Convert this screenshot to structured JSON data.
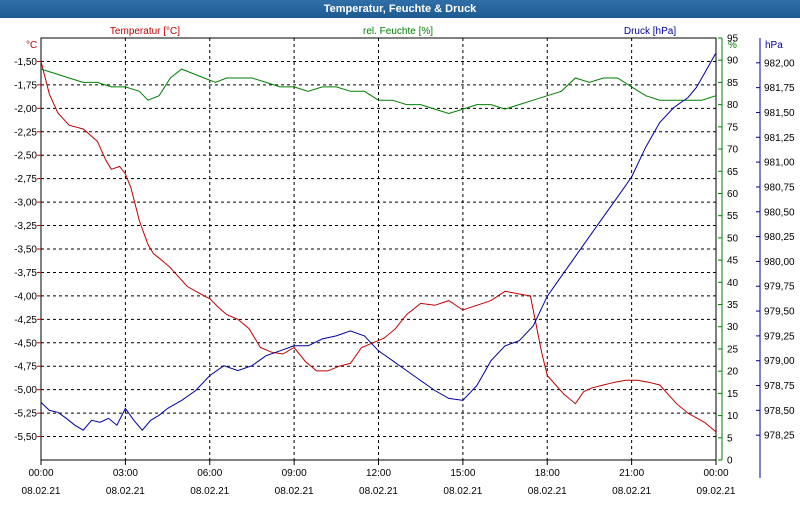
{
  "window": {
    "title": "Temperatur, Feuchte & Druck"
  },
  "colors": {
    "temperature": "#c00000",
    "humidity": "#008000",
    "pressure": "#0000a0",
    "titlebar": "#1f5a92",
    "grid": "#000000"
  },
  "chart_data": {
    "type": "line",
    "title": "Temperatur, Feuchte & Druck",
    "grid": true,
    "x_ticks": [
      [
        "00:00",
        "08.02.21"
      ],
      [
        "03:00",
        "08.02.21"
      ],
      [
        "06:00",
        "08.02.21"
      ],
      [
        "09:00",
        "08.02.21"
      ],
      [
        "12:00",
        "08.02.21"
      ],
      [
        "15:00",
        "08.02.21"
      ],
      [
        "18:00",
        "08.02.21"
      ],
      [
        "21:00",
        "08.02.21"
      ],
      [
        "00:00",
        "09.02.21"
      ]
    ],
    "xlim_hours": [
      0,
      24
    ],
    "axes": {
      "temperature": {
        "label": "Temperatur [°C]",
        "unit": "°C",
        "ylim": [
          -5.75,
          -1.25
        ],
        "ticks": [
          "-1,50",
          "-1,75",
          "-2,00",
          "-2,25",
          "-2,50",
          "-2,75",
          "-3,00",
          "-3,25",
          "-3,50",
          "-3,75",
          "-4,00",
          "-4,25",
          "-4,50",
          "-4,75",
          "-5,00",
          "-5,25",
          "-5,50"
        ]
      },
      "humidity": {
        "label": "rel. Feuchte [%]",
        "unit": "%",
        "ylim": [
          0,
          95
        ],
        "ticks": [
          "95",
          "90",
          "85",
          "80",
          "75",
          "70",
          "65",
          "60",
          "55",
          "50",
          "45",
          "40",
          "35",
          "30",
          "25",
          "20",
          "15",
          "10",
          "5",
          "0"
        ]
      },
      "pressure": {
        "label": "Druck [hPa]",
        "unit": "hPa",
        "ylim": [
          978.0,
          982.25
        ],
        "ticks": [
          "982,00",
          "981,75",
          "981,50",
          "981,25",
          "981,00",
          "980,75",
          "980,50",
          "980,25",
          "980,00",
          "979,75",
          "979,50",
          "979,25",
          "979,00",
          "978,75",
          "978,50",
          "978,25"
        ]
      }
    },
    "series": [
      {
        "name": "Temperatur [°C]",
        "axis": "temperature",
        "x": [
          0,
          0.3,
          0.6,
          1.0,
          1.5,
          2.0,
          2.3,
          2.5,
          2.8,
          3.0,
          3.2,
          3.5,
          3.8,
          4.0,
          4.3,
          4.6,
          4.9,
          5.2,
          5.5,
          5.8,
          6.0,
          6.3,
          6.6,
          7.0,
          7.4,
          7.8,
          8.2,
          8.6,
          9.0,
          9.4,
          9.8,
          10.2,
          10.6,
          11.0,
          11.4,
          11.8,
          12.2,
          12.6,
          13.0,
          13.5,
          14.0,
          14.5,
          15.0,
          15.5,
          16.0,
          16.5,
          17.0,
          17.4,
          17.6,
          17.8,
          18.0,
          18.3,
          18.6,
          19.0,
          19.3,
          19.6,
          20.0,
          20.4,
          20.8,
          21.2,
          21.6,
          22.0,
          22.3,
          22.6,
          23.0,
          23.3,
          23.6,
          24.0
        ],
        "values": [
          -1.5,
          -1.85,
          -2.05,
          -2.18,
          -2.22,
          -2.35,
          -2.55,
          -2.65,
          -2.62,
          -2.7,
          -2.85,
          -3.2,
          -3.45,
          -3.55,
          -3.62,
          -3.7,
          -3.8,
          -3.9,
          -3.95,
          -4.0,
          -4.03,
          -4.12,
          -4.2,
          -4.25,
          -4.35,
          -4.55,
          -4.6,
          -4.62,
          -4.55,
          -4.7,
          -4.8,
          -4.8,
          -4.75,
          -4.72,
          -4.55,
          -4.5,
          -4.45,
          -4.35,
          -4.2,
          -4.08,
          -4.1,
          -4.05,
          -4.15,
          -4.1,
          -4.05,
          -3.95,
          -3.98,
          -4.0,
          -4.3,
          -4.6,
          -4.85,
          -4.95,
          -5.05,
          -5.15,
          -5.02,
          -4.98,
          -4.95,
          -4.92,
          -4.9,
          -4.9,
          -4.92,
          -4.95,
          -5.05,
          -5.15,
          -5.25,
          -5.3,
          -5.35,
          -5.45
        ]
      },
      {
        "name": "rel. Feuchte [%]",
        "axis": "humidity",
        "x": [
          0,
          0.5,
          1.0,
          1.5,
          2.0,
          2.5,
          3.0,
          3.5,
          3.8,
          4.2,
          4.6,
          5.0,
          5.4,
          5.8,
          6.2,
          6.6,
          7.0,
          7.5,
          8.0,
          8.5,
          9.0,
          9.5,
          10.0,
          10.5,
          11.0,
          11.5,
          12.0,
          12.5,
          13.0,
          13.5,
          14.0,
          14.5,
          15.0,
          15.5,
          16.0,
          16.5,
          17.0,
          17.5,
          18.0,
          18.5,
          19.0,
          19.5,
          20.0,
          20.5,
          21.0,
          21.5,
          22.0,
          22.5,
          23.0,
          23.5,
          24.0
        ],
        "values": [
          88,
          87,
          86,
          85,
          85,
          84,
          84,
          83,
          81,
          82,
          86,
          88,
          87,
          86,
          85,
          86,
          86,
          86,
          85,
          84,
          84,
          83,
          84,
          84,
          83,
          83,
          81,
          81,
          80,
          80,
          79,
          78,
          79,
          80,
          80,
          79,
          80,
          81,
          82,
          83,
          86,
          85,
          86,
          86,
          84,
          82,
          81,
          81,
          81,
          81,
          82
        ]
      },
      {
        "name": "Druck [hPa]",
        "axis": "pressure",
        "x": [
          0,
          0.3,
          0.6,
          0.9,
          1.2,
          1.5,
          1.8,
          2.1,
          2.4,
          2.7,
          3.0,
          3.3,
          3.6,
          3.9,
          4.2,
          4.5,
          5.0,
          5.5,
          6.0,
          6.5,
          7.0,
          7.5,
          8.0,
          8.5,
          9.0,
          9.5,
          10.0,
          10.5,
          11.0,
          11.5,
          12.0,
          12.5,
          13.0,
          13.5,
          14.0,
          14.5,
          15.0,
          15.5,
          16.0,
          16.5,
          17.0,
          17.5,
          18.0,
          18.5,
          19.0,
          19.5,
          20.0,
          20.5,
          21.0,
          21.5,
          22.0,
          22.5,
          23.0,
          23.3,
          23.6,
          24.0
        ],
        "values": [
          978.58,
          978.5,
          978.48,
          978.42,
          978.35,
          978.3,
          978.4,
          978.38,
          978.42,
          978.35,
          978.52,
          978.4,
          978.3,
          978.4,
          978.45,
          978.52,
          978.6,
          978.7,
          978.85,
          978.95,
          978.9,
          978.95,
          979.05,
          979.1,
          979.15,
          979.15,
          979.22,
          979.25,
          979.3,
          979.25,
          979.1,
          979.0,
          978.9,
          978.8,
          978.7,
          978.62,
          978.6,
          978.75,
          979.0,
          979.15,
          979.2,
          979.35,
          979.65,
          979.85,
          980.05,
          980.25,
          980.45,
          980.65,
          980.85,
          981.15,
          981.4,
          981.55,
          981.65,
          981.75,
          981.9,
          982.1
        ]
      }
    ]
  }
}
